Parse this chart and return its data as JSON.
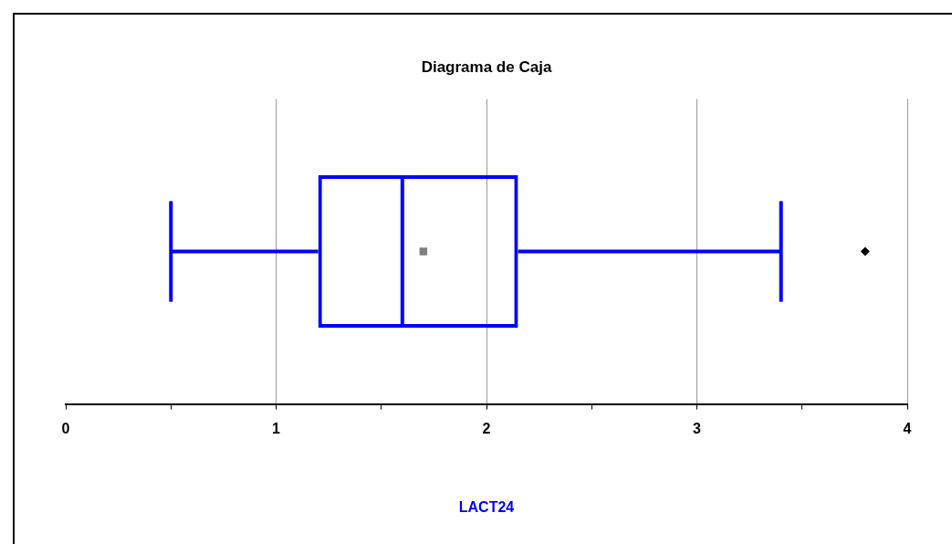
{
  "chart_data": {
    "type": "box",
    "title": "Diagrama de Caja",
    "xlabel": "LACT24",
    "orientation": "horizontal",
    "categories": [
      null
    ],
    "boxes": [
      {
        "low": 0.5,
        "q1": 1.2,
        "median": 1.6,
        "q3": 2.15,
        "high": 3.4,
        "mean": 1.7,
        "outliers": [
          3.8
        ]
      }
    ],
    "color": "#0000ff",
    "xlim": [
      0,
      4
    ],
    "xticks": [
      0,
      {
        "value": 0.5,
        "label": null
      },
      1,
      {
        "value": 1.5,
        "label": null
      },
      2,
      {
        "value": 2.5,
        "label": null
      },
      3,
      {
        "value": 3.5,
        "label": null
      },
      4
    ],
    "grid": "x"
  }
}
